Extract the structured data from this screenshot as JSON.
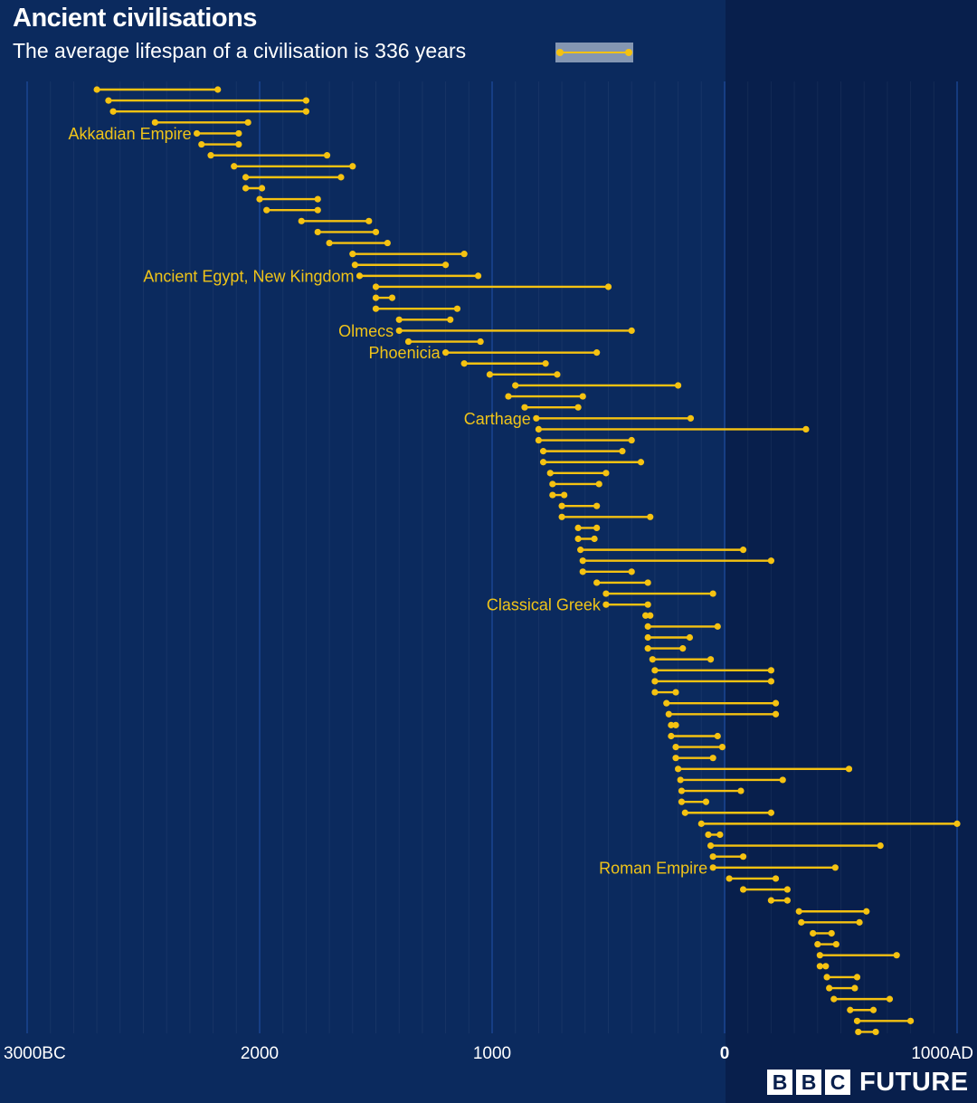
{
  "chart_data": {
    "type": "dumbbell",
    "title": "Ancient civilisations",
    "subtitle": "The average lifespan of a civilisation is 336 years",
    "x_axis": {
      "range": [
        -3000,
        1000
      ],
      "ticks": [
        {
          "value": -3000,
          "label": "3000BC"
        },
        {
          "value": -2000,
          "label": "2000"
        },
        {
          "value": -1000,
          "label": "1000"
        },
        {
          "value": 0,
          "label": "0"
        },
        {
          "value": 1000,
          "label": "1000AD"
        }
      ]
    },
    "grid": true,
    "colors": {
      "background": "#0b2a5e",
      "band": "#081f4c",
      "grid": "#1c4a9a",
      "line": "#f5c211",
      "label": "#f0c419"
    },
    "annotations": [
      {
        "row": 4,
        "text": "Akkadian Empire"
      },
      {
        "row": 17,
        "text": "Ancient Egypt, New Kingdom"
      },
      {
        "row": 22,
        "text": "Olmecs"
      },
      {
        "row": 24,
        "text": "Phoenicia"
      },
      {
        "row": 30,
        "text": "Carthage"
      },
      {
        "row": 47,
        "text": "Classical Greek"
      },
      {
        "row": 71,
        "text": "Roman Empire"
      }
    ],
    "intervals": [
      {
        "start": -2700,
        "end": -2180
      },
      {
        "start": -2650,
        "end": -1800
      },
      {
        "start": -2630,
        "end": -1800
      },
      {
        "start": -2450,
        "end": -2050
      },
      {
        "start": -2270,
        "end": -2090
      },
      {
        "start": -2250,
        "end": -2090
      },
      {
        "start": -2210,
        "end": -1710
      },
      {
        "start": -2110,
        "end": -1600
      },
      {
        "start": -2060,
        "end": -1650
      },
      {
        "start": -2060,
        "end": -1990
      },
      {
        "start": -2000,
        "end": -1750
      },
      {
        "start": -1970,
        "end": -1750
      },
      {
        "start": -1820,
        "end": -1530
      },
      {
        "start": -1750,
        "end": -1500
      },
      {
        "start": -1700,
        "end": -1450
      },
      {
        "start": -1600,
        "end": -1120
      },
      {
        "start": -1590,
        "end": -1200
      },
      {
        "start": -1570,
        "end": -1060
      },
      {
        "start": -1500,
        "end": -500
      },
      {
        "start": -1500,
        "end": -1430
      },
      {
        "start": -1500,
        "end": -1150
      },
      {
        "start": -1400,
        "end": -1180
      },
      {
        "start": -1400,
        "end": -400
      },
      {
        "start": -1360,
        "end": -1050
      },
      {
        "start": -1200,
        "end": -550
      },
      {
        "start": -1120,
        "end": -770
      },
      {
        "start": -1010,
        "end": -720
      },
      {
        "start": -900,
        "end": -200
      },
      {
        "start": -930,
        "end": -610
      },
      {
        "start": -860,
        "end": -630
      },
      {
        "start": -810,
        "end": -146
      },
      {
        "start": -800,
        "end": 350
      },
      {
        "start": -800,
        "end": -400
      },
      {
        "start": -780,
        "end": -440
      },
      {
        "start": -780,
        "end": -360
      },
      {
        "start": -750,
        "end": -510
      },
      {
        "start": -740,
        "end": -540
      },
      {
        "start": -740,
        "end": -690
      },
      {
        "start": -700,
        "end": -550
      },
      {
        "start": -700,
        "end": -320
      },
      {
        "start": -630,
        "end": -550
      },
      {
        "start": -630,
        "end": -560
      },
      {
        "start": -620,
        "end": 80
      },
      {
        "start": -610,
        "end": 200
      },
      {
        "start": -610,
        "end": -400
      },
      {
        "start": -550,
        "end": -330
      },
      {
        "start": -510,
        "end": -50
      },
      {
        "start": -510,
        "end": -330
      },
      {
        "start": -340,
        "end": -320
      },
      {
        "start": -330,
        "end": -30
      },
      {
        "start": -330,
        "end": -150
      },
      {
        "start": -330,
        "end": -180
      },
      {
        "start": -310,
        "end": -60
      },
      {
        "start": -300,
        "end": 200
      },
      {
        "start": -300,
        "end": 200
      },
      {
        "start": -300,
        "end": -210
      },
      {
        "start": -250,
        "end": 220
      },
      {
        "start": -240,
        "end": 220
      },
      {
        "start": -230,
        "end": -210
      },
      {
        "start": -230,
        "end": -30
      },
      {
        "start": -210,
        "end": -10
      },
      {
        "start": -210,
        "end": -50
      },
      {
        "start": -200,
        "end": 535
      },
      {
        "start": -190,
        "end": 250
      },
      {
        "start": -185,
        "end": 70
      },
      {
        "start": -185,
        "end": -80
      },
      {
        "start": -170,
        "end": 200
      },
      {
        "start": -100,
        "end": 1000
      },
      {
        "start": -70,
        "end": -20
      },
      {
        "start": -60,
        "end": 670
      },
      {
        "start": -50,
        "end": 80
      },
      {
        "start": -50,
        "end": 476
      },
      {
        "start": 20,
        "end": 220
      },
      {
        "start": 80,
        "end": 270
      },
      {
        "start": 200,
        "end": 270
      },
      {
        "start": 320,
        "end": 610
      },
      {
        "start": 330,
        "end": 580
      },
      {
        "start": 380,
        "end": 460
      },
      {
        "start": 400,
        "end": 480
      },
      {
        "start": 410,
        "end": 740
      },
      {
        "start": 410,
        "end": 435
      },
      {
        "start": 440,
        "end": 570
      },
      {
        "start": 450,
        "end": 560
      },
      {
        "start": 470,
        "end": 710
      },
      {
        "start": 540,
        "end": 640
      },
      {
        "start": 570,
        "end": 800
      },
      {
        "start": 575,
        "end": 650
      }
    ]
  },
  "brand": {
    "box_letters": [
      "B",
      "B",
      "C"
    ],
    "word": "FUTURE"
  }
}
